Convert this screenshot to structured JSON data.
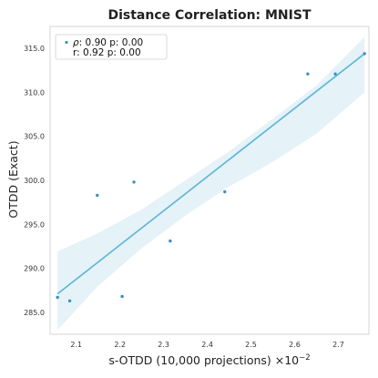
{
  "chart_data": {
    "type": "scatter",
    "title": "Distance Correlation: MNIST",
    "xlabel": "s-OTDD (10,000 projections) ×10",
    "xlabel_exponent": "−2",
    "ylabel": "OTDD (Exact)",
    "xlim": [
      2.04,
      2.77
    ],
    "ylim": [
      282.5,
      317.5
    ],
    "xticks": [
      2.1,
      2.2,
      2.3,
      2.4,
      2.5,
      2.6,
      2.7
    ],
    "xtick_labels": [
      "2.1",
      "2.2",
      "2.3",
      "2.4",
      "2.5",
      "2.6",
      "2.7"
    ],
    "yticks": [
      285,
      290,
      295,
      300,
      305,
      310,
      315
    ],
    "ytick_labels": [
      "285.0",
      "290.0",
      "295.0",
      "300.0",
      "305.0",
      "310.0",
      "315.0"
    ],
    "grid": false,
    "legend_placement": "top-left",
    "legend_lines": [
      {
        "symbol": "ρ",
        "text": ": 0.90  p: 0.00"
      },
      {
        "symbol": "",
        "text": "r: 0.92  p: 0.00"
      }
    ],
    "points": [
      {
        "x": 2.057,
        "y": 286.7
      },
      {
        "x": 2.085,
        "y": 286.3
      },
      {
        "x": 2.148,
        "y": 298.3
      },
      {
        "x": 2.205,
        "y": 286.8
      },
      {
        "x": 2.232,
        "y": 299.8
      },
      {
        "x": 2.315,
        "y": 293.1
      },
      {
        "x": 2.44,
        "y": 298.7
      },
      {
        "x": 2.63,
        "y": 312.1
      },
      {
        "x": 2.693,
        "y": 312.1
      },
      {
        "x": 2.76,
        "y": 314.4
      }
    ],
    "regression": {
      "x_start": 2.057,
      "y_start": 287.1,
      "x_end": 2.76,
      "y_end": 314.4
    },
    "confidence_band": {
      "x": [
        2.057,
        2.15,
        2.25,
        2.35,
        2.45,
        2.55,
        2.65,
        2.76
      ],
      "upper": [
        291.9,
        294.0,
        296.7,
        300.0,
        303.3,
        307.0,
        310.8,
        316.3
      ],
      "lower": [
        283.0,
        288.0,
        292.3,
        296.0,
        299.3,
        302.1,
        305.3,
        310.0
      ]
    },
    "colors": {
      "points": "#3a8fc0",
      "line": "#5ab4d6",
      "band": "#dcedf6",
      "axes": "#cccccc"
    }
  }
}
